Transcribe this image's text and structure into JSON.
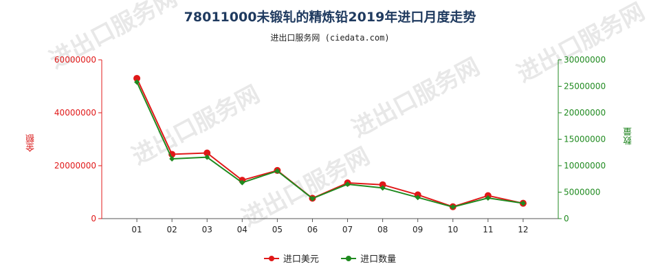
{
  "title": "78011000未锻轧的精炼铅2019年进口月度走势",
  "subtitle": "进出口服务网 (ciedata.com)",
  "watermark": "进出口服务网",
  "colors": {
    "left_series": "#e01818",
    "right_series": "#1f8a1f",
    "title": "#1f3a5f"
  },
  "chart_data": {
    "type": "line",
    "categories": [
      "01",
      "02",
      "03",
      "04",
      "05",
      "06",
      "07",
      "08",
      "09",
      "10",
      "11",
      "12"
    ],
    "left_axis": {
      "label": "金额",
      "ylim": [
        0,
        60000000
      ],
      "ticks": [
        "60000000",
        "40000000",
        "20000000",
        "0"
      ],
      "tick_values": [
        60000000,
        40000000,
        20000000,
        0
      ]
    },
    "right_axis": {
      "label": "数量",
      "ylim": [
        0,
        30000000
      ],
      "ticks": [
        "30000000",
        "25000000",
        "20000000",
        "15000000",
        "10000000",
        "5000000",
        "0"
      ],
      "tick_values": [
        30000000,
        25000000,
        20000000,
        15000000,
        10000000,
        5000000,
        0
      ]
    },
    "series": [
      {
        "name": "进口美元",
        "axis": "left",
        "values": [
          53000000,
          24300000,
          24800000,
          14500000,
          18200000,
          7700000,
          13500000,
          12800000,
          9000000,
          4500000,
          8700000,
          5800000
        ]
      },
      {
        "name": "进口数量",
        "axis": "right",
        "values": [
          25800000,
          11300000,
          11600000,
          6800000,
          9000000,
          3800000,
          6500000,
          5800000,
          4000000,
          2200000,
          3900000,
          2900000
        ]
      }
    ],
    "grid": false,
    "legend_position": "bottom-center"
  }
}
